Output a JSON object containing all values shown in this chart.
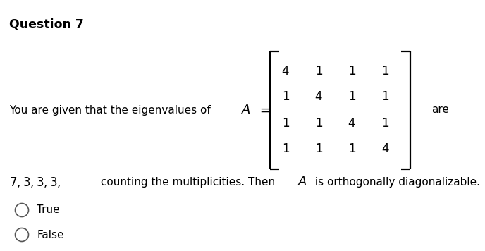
{
  "title": "Question 7",
  "background_color": "#ffffff",
  "text_color": "#000000",
  "title_fontsize": 12.5,
  "body_fontsize": 11,
  "matrix": [
    [
      4,
      1,
      1,
      1
    ],
    [
      1,
      4,
      1,
      1
    ],
    [
      1,
      1,
      4,
      1
    ],
    [
      1,
      1,
      1,
      4
    ]
  ],
  "option1": "True",
  "option2": "False",
  "radio_color": "#ffffff",
  "radio_edge_color": "#555555"
}
